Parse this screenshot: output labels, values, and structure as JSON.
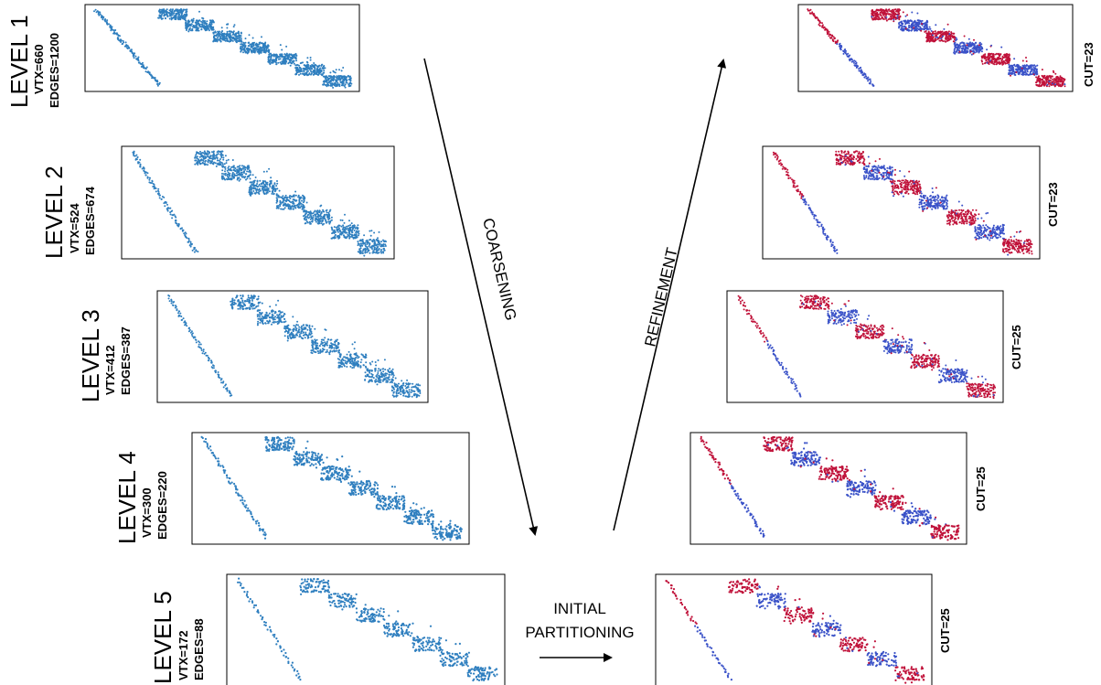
{
  "colors": {
    "original": "#2f7fbf",
    "part_a": "#c0123a",
    "part_b": "#3a52c8",
    "outline": "#000000"
  },
  "levels": [
    {
      "title": "LEVEL 1",
      "vtx": "VTX=660",
      "edges": "EDGES=1200",
      "cut": "CUT=23"
    },
    {
      "title": "LEVEL 2",
      "vtx": "VTX=524",
      "edges": "EDGES=674",
      "cut": "CUT=23"
    },
    {
      "title": "LEVEL 3",
      "vtx": "VTX=412",
      "edges": "EDGES=387",
      "cut": "CUT=25"
    },
    {
      "title": "LEVEL 4",
      "vtx": "VTX=300",
      "edges": "EDGES=220",
      "cut": "CUT=25"
    },
    {
      "title": "LEVEL 5",
      "vtx": "VTX=172",
      "edges": "EDGES=88",
      "cut": "CUT=25"
    }
  ],
  "phases": {
    "coarsening": "COARSENING",
    "refinement": "REFINEMENT",
    "initial_line1": "INITIAL",
    "initial_line2": "PARTITIONING"
  }
}
